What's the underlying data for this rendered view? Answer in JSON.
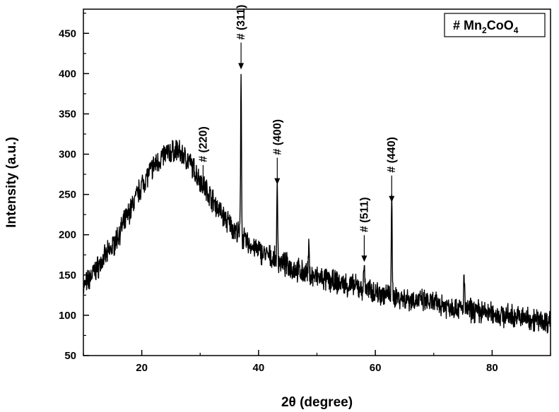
{
  "chart_data": {
    "type": "line",
    "xlabel": "2θ (degree)",
    "ylabel": "Intensity (a.u.)",
    "xlim": [
      10,
      90
    ],
    "ylim": [
      50,
      480
    ],
    "xticks": [
      20,
      40,
      60,
      80
    ],
    "yticks": [
      50,
      100,
      150,
      200,
      250,
      300,
      350,
      400,
      450
    ],
    "grid": false,
    "legend": {
      "position": "top-right",
      "prefix": "# ",
      "formula_parts": [
        {
          "text": "Mn",
          "sub": false
        },
        {
          "text": "2",
          "sub": true
        },
        {
          "text": "CoO",
          "sub": false
        },
        {
          "text": "4",
          "sub": true
        }
      ]
    },
    "series": [
      {
        "color": "#000000",
        "baseline": [
          [
            10,
            135
          ],
          [
            12,
            155
          ],
          [
            15,
            185
          ],
          [
            18,
            230
          ],
          [
            20,
            262
          ],
          [
            22,
            285
          ],
          [
            24,
            300
          ],
          [
            26,
            305
          ],
          [
            28,
            292
          ],
          [
            30,
            268
          ],
          [
            32,
            245
          ],
          [
            34,
            222
          ],
          [
            36,
            205
          ],
          [
            38,
            190
          ],
          [
            40,
            180
          ],
          [
            42,
            172
          ],
          [
            44,
            165
          ],
          [
            46,
            158
          ],
          [
            48,
            152
          ],
          [
            50,
            147
          ],
          [
            52,
            143
          ],
          [
            55,
            138
          ],
          [
            58,
            133
          ],
          [
            60,
            129
          ],
          [
            63,
            124
          ],
          [
            66,
            120
          ],
          [
            70,
            115
          ],
          [
            75,
            108
          ],
          [
            80,
            102
          ],
          [
            85,
            97
          ],
          [
            90,
            92
          ]
        ],
        "peaks": [
          {
            "x": 37.0,
            "y": 405
          },
          {
            "x": 43.2,
            "y": 262
          },
          {
            "x": 48.6,
            "y": 185
          },
          {
            "x": 58.1,
            "y": 166
          },
          {
            "x": 62.8,
            "y": 240
          },
          {
            "x": 75.2,
            "y": 150
          }
        ],
        "noise_amplitude": 12
      }
    ],
    "annotations": [
      {
        "label": "# (220)",
        "x": 30.5,
        "y_arrow_tip": 255
      },
      {
        "label": "# (311)",
        "x": 37.0,
        "y_arrow_tip": 407
      },
      {
        "label": "# (400)",
        "x": 43.2,
        "y_arrow_tip": 264
      },
      {
        "label": "# (511)",
        "x": 58.1,
        "y_arrow_tip": 168
      },
      {
        "label": "# (440)",
        "x": 62.8,
        "y_arrow_tip": 242
      }
    ]
  }
}
